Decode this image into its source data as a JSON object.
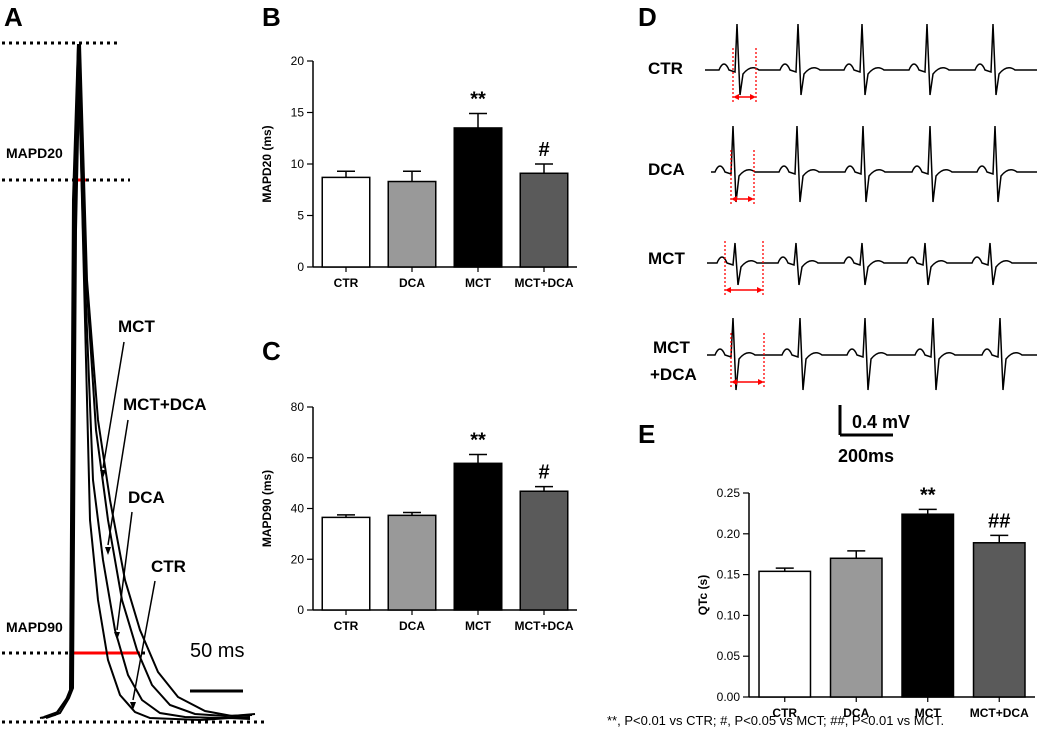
{
  "panels": {
    "A": {
      "label": "A",
      "mapd20_label": "MAPD20",
      "mapd90_label": "MAPD90",
      "scale_label": "50 ms",
      "trace_labels": [
        "MCT",
        "MCT+DCA",
        "DCA",
        "CTR"
      ]
    },
    "B": {
      "label": "B"
    },
    "C": {
      "label": "C"
    },
    "D": {
      "label": "D",
      "row_labels": [
        "CTR",
        "DCA",
        "MCT",
        "MCT\n+DCA"
      ],
      "scale_v": "0.4 mV",
      "scale_t": "200ms"
    },
    "E": {
      "label": "E"
    }
  },
  "footnote": "**, P<0.01 vs CTR; #, P<0.05 vs MCT; ##, P<0.01 vs MCT.",
  "colors": {
    "ctr": "#ffffff",
    "dca": "#999999",
    "mct": "#000000",
    "mct_dca": "#5a5a5a",
    "marker": "#ff0000"
  },
  "chart_data": [
    {
      "id": "B",
      "type": "bar",
      "categories": [
        "CTR",
        "DCA",
        "MCT",
        "MCT+DCA"
      ],
      "values": [
        8.7,
        8.3,
        13.5,
        9.1
      ],
      "errors": [
        0.6,
        1.0,
        1.4,
        0.9
      ],
      "annotations": [
        "",
        "",
        "**",
        "#"
      ],
      "ylabel": "MAPD20 (ms)",
      "ylim": [
        0,
        20
      ],
      "yticks": [
        "0",
        "5",
        "10",
        "15",
        "20"
      ],
      "colors": [
        "#ffffff",
        "#999999",
        "#000000",
        "#5a5a5a"
      ]
    },
    {
      "id": "C",
      "type": "bar",
      "categories": [
        "CTR",
        "DCA",
        "MCT",
        "MCT+DCA"
      ],
      "values": [
        36.5,
        37.3,
        57.8,
        46.8
      ],
      "errors": [
        1.0,
        1.1,
        3.5,
        1.8
      ],
      "annotations": [
        "",
        "",
        "**",
        "#"
      ],
      "ylabel": "MAPD90 (ms)",
      "ylim": [
        0,
        80
      ],
      "yticks": [
        "0",
        "20",
        "40",
        "60",
        "80"
      ],
      "colors": [
        "#ffffff",
        "#999999",
        "#000000",
        "#5a5a5a"
      ]
    },
    {
      "id": "E",
      "type": "bar",
      "categories": [
        "CTR",
        "DCA",
        "MCT",
        "MCT+DCA"
      ],
      "values": [
        0.154,
        0.17,
        0.224,
        0.189
      ],
      "errors": [
        0.004,
        0.009,
        0.006,
        0.009
      ],
      "annotations": [
        "",
        "",
        "**",
        "##"
      ],
      "ylabel": "QTc (s)",
      "ylim": [
        0,
        0.25
      ],
      "yticks": [
        "0.00",
        "0.05",
        "0.10",
        "0.15",
        "0.20",
        "0.25"
      ],
      "colors": [
        "#ffffff",
        "#999999",
        "#000000",
        "#5a5a5a"
      ]
    }
  ]
}
